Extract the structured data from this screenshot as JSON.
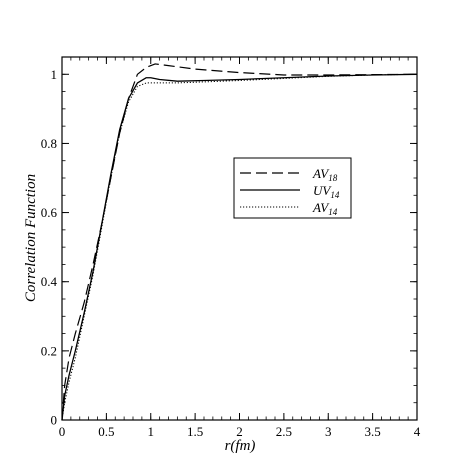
{
  "chart_data": {
    "type": "line",
    "title": "",
    "xlabel": "r(fm)",
    "ylabel": "Correlation Function",
    "xlim": [
      0,
      4
    ],
    "ylim": [
      0,
      1.05
    ],
    "xticks": [
      0,
      0.5,
      1,
      1.5,
      2,
      2.5,
      3,
      3.5,
      4
    ],
    "xtick_labels": [
      "0",
      "0.5",
      "1",
      "1.5",
      "2",
      "2.5",
      "3",
      "3.5",
      "4"
    ],
    "yticks": [
      0,
      0.2,
      0.4,
      0.6,
      0.8,
      1
    ],
    "ytick_labels": [
      "0",
      "0.2",
      "0.4",
      "0.6",
      "0.8",
      "1"
    ],
    "grid": false,
    "legend_position": "center-right",
    "series": [
      {
        "name": "AV18",
        "label_main": "AV",
        "label_sub": "18",
        "style": "dashed",
        "color": "#000000",
        "x": [
          0,
          0.03,
          0.08,
          0.15,
          0.25,
          0.35,
          0.45,
          0.55,
          0.65,
          0.75,
          0.85,
          0.95,
          1.05,
          1.2,
          1.5,
          2.0,
          2.5,
          3.0,
          3.5,
          4.0
        ],
        "y": [
          0.0,
          0.1,
          0.18,
          0.25,
          0.34,
          0.45,
          0.57,
          0.7,
          0.83,
          0.93,
          1.0,
          1.02,
          1.03,
          1.025,
          1.015,
          1.005,
          0.998,
          0.998,
          0.999,
          1.0
        ]
      },
      {
        "name": "UV14",
        "label_main": "UV",
        "label_sub": "14",
        "style": "solid",
        "color": "#000000",
        "x": [
          0,
          0.03,
          0.08,
          0.15,
          0.25,
          0.35,
          0.45,
          0.55,
          0.65,
          0.75,
          0.85,
          0.95,
          1.0,
          1.1,
          1.3,
          1.6,
          2.0,
          2.5,
          3.0,
          3.5,
          4.0
        ],
        "y": [
          0.0,
          0.07,
          0.13,
          0.2,
          0.31,
          0.43,
          0.57,
          0.71,
          0.84,
          0.93,
          0.975,
          0.99,
          0.99,
          0.985,
          0.98,
          0.982,
          0.985,
          0.99,
          0.995,
          0.998,
          1.0
        ]
      },
      {
        "name": "AV14",
        "label_main": "AV",
        "label_sub": "14",
        "style": "dotted",
        "color": "#000000",
        "x": [
          0,
          0.03,
          0.08,
          0.15,
          0.25,
          0.35,
          0.45,
          0.55,
          0.65,
          0.75,
          0.85,
          0.95,
          1.0,
          1.1,
          1.3,
          1.6,
          2.0,
          2.5,
          3.0,
          3.5,
          4.0
        ],
        "y": [
          0.0,
          0.05,
          0.11,
          0.18,
          0.3,
          0.42,
          0.56,
          0.7,
          0.83,
          0.92,
          0.965,
          0.975,
          0.975,
          0.975,
          0.975,
          0.978,
          0.982,
          0.988,
          0.994,
          0.998,
          1.0
        ]
      }
    ]
  }
}
